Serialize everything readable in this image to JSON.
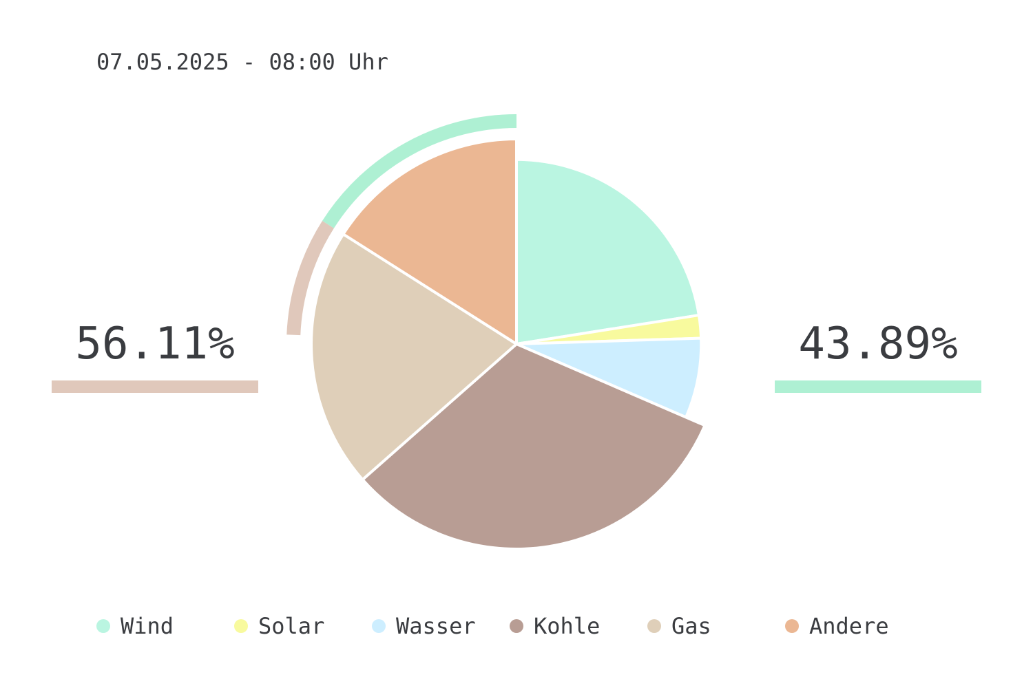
{
  "header": {
    "timestamp": "07.05.2025 - 08:00 Uhr"
  },
  "stats": {
    "left": {
      "value": "56.11%",
      "color": "#e0c8bb"
    },
    "right": {
      "value": "43.89%",
      "color": "#aef0d3"
    }
  },
  "chart_data": {
    "type": "pie",
    "slices": [
      {
        "label": "Wind",
        "value": 22.5,
        "color": "#baf5e1",
        "radius_scale": 0.9
      },
      {
        "label": "Solar",
        "value": 2.0,
        "color": "#f8fa9e",
        "radius_scale": 0.9
      },
      {
        "label": "Wasser",
        "value": 7.0,
        "color": "#cdeeff",
        "radius_scale": 0.9
      },
      {
        "label": "Kohle",
        "value": 32.0,
        "color": "#b89d94",
        "radius_scale": 1.0
      },
      {
        "label": "Gas",
        "value": 20.5,
        "color": "#dfcfb9",
        "radius_scale": 1.0
      },
      {
        "label": "Andere",
        "value": 16.0,
        "color": "#ebb793",
        "radius_scale": 1.0
      }
    ],
    "outer_arcs": [
      {
        "group": "renewable",
        "color": "#aef0d3",
        "fraction": 0.16
      },
      {
        "group": "fossil",
        "color": "#e0c8bb",
        "fraction": 0.0835
      }
    ],
    "legend_position": "bottom"
  }
}
